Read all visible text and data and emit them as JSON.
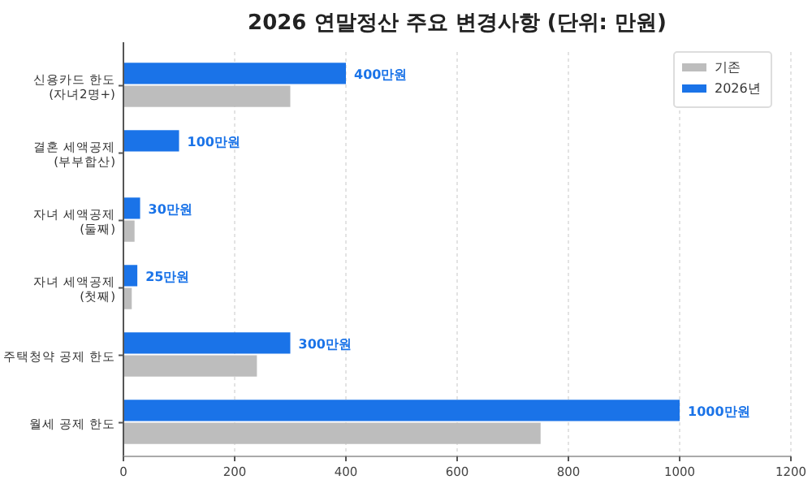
{
  "chart_data": {
    "type": "bar",
    "orientation": "horizontal",
    "title": "2026 연말정산 주요 변경사항 (단위: 만원)",
    "categories": [
      "신용카드 한도\n(자녀2명+)",
      "결혼 세액공제\n(부부합산)",
      "자녀 세액공제\n(둘째)",
      "자녀 세액공제\n(첫째)",
      "주택청약 공제 한도",
      "월세 공제 한도"
    ],
    "series": [
      {
        "name": "2026년",
        "color": "#1a73e8",
        "values": [
          400,
          100,
          30,
          25,
          300,
          1000
        ],
        "value_labels": [
          "400만원",
          "100만원",
          "30만원",
          "25만원",
          "300만원",
          "1000만원"
        ]
      },
      {
        "name": "기존",
        "color": "#bdbdbd",
        "values": [
          300,
          0,
          20,
          15,
          240,
          750
        ]
      }
    ],
    "xlim": [
      0,
      1200
    ],
    "xticks": [
      0,
      200,
      400,
      600,
      800,
      1000,
      1200
    ],
    "grid": "x",
    "legend": "top right"
  }
}
